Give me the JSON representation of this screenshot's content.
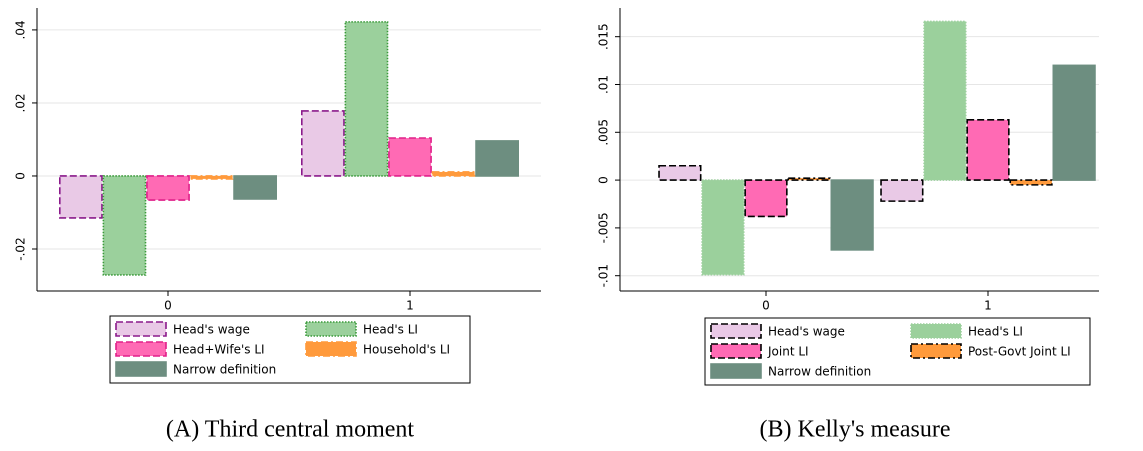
{
  "chart_data": [
    {
      "type": "bar",
      "caption": "(A) Third central moment",
      "categories": [
        "0",
        "1"
      ],
      "ylim": [
        -0.0315,
        0.046
      ],
      "yticks": [
        {
          "value": -0.02,
          "label": "-.02"
        },
        0,
        {
          "value": 0.02,
          "label": ".02"
        },
        {
          "value": 0.04,
          "label": ".04"
        }
      ],
      "grid": true,
      "series": [
        {
          "name": "Head's wage",
          "color": "#e9c9e6",
          "edgecolor": "#8b1a8b",
          "linestyle": "dashed",
          "values": [
            -0.0115,
            0.0178
          ]
        },
        {
          "name": "Head's LI",
          "color": "#9bd09c",
          "edgecolor": "#3a9a3a",
          "linestyle": "dotted",
          "values": [
            -0.0271,
            0.0422
          ]
        },
        {
          "name": "Head+Wife's LI",
          "color": "#ff6ab4",
          "edgecolor": "#e0208a",
          "linestyle": "dashed",
          "values": [
            -0.0066,
            0.0104
          ]
        },
        {
          "name": "Household's LI",
          "color": "#ff9a3c",
          "edgecolor": "#ff9a3c",
          "linestyle": "dashdot",
          "values": [
            -0.0008,
            0.0011
          ]
        },
        {
          "name": "Narrow definition",
          "color": "#6d8e80",
          "edgecolor": "#6d8e80",
          "linestyle": "solid",
          "values": [
            -0.0063,
            0.0096
          ]
        }
      ]
    },
    {
      "type": "bar",
      "caption": "(B) Kelly's measure",
      "categories": [
        "0",
        "1"
      ],
      "ylim": [
        -0.0116,
        0.018
      ],
      "yticks": [
        {
          "value": -0.01,
          "label": "-.01"
        },
        {
          "value": -0.005,
          "label": "-.005"
        },
        0,
        {
          "value": 0.005,
          "label": ".005"
        },
        {
          "value": 0.01,
          "label": ".01"
        },
        {
          "value": 0.015,
          "label": ".015"
        }
      ],
      "grid": true,
      "series": [
        {
          "name": "Head's wage",
          "color": "#e9c9e6",
          "edgecolor": "#000000",
          "linestyle": "dashed",
          "values": [
            0.0015,
            -0.0022
          ]
        },
        {
          "name": "Head's LI",
          "color": "#9bd09c",
          "edgecolor": "#9bd09c",
          "linestyle": "dotted",
          "values": [
            -0.0099,
            0.0166
          ]
        },
        {
          "name": "Joint LI",
          "color": "#ff6ab4",
          "edgecolor": "#000000",
          "linestyle": "dashed",
          "values": [
            -0.0038,
            0.0063
          ]
        },
        {
          "name": "Post-Govt Joint LI",
          "color": "#ff9a3c",
          "edgecolor": "#000000",
          "linestyle": "dashdot",
          "values": [
            0.0002,
            -0.0005
          ]
        },
        {
          "name": "Narrow definition",
          "color": "#6d8e80",
          "edgecolor": "#6d8e80",
          "linestyle": "solid",
          "values": [
            -0.0073,
            0.012
          ]
        }
      ]
    }
  ]
}
